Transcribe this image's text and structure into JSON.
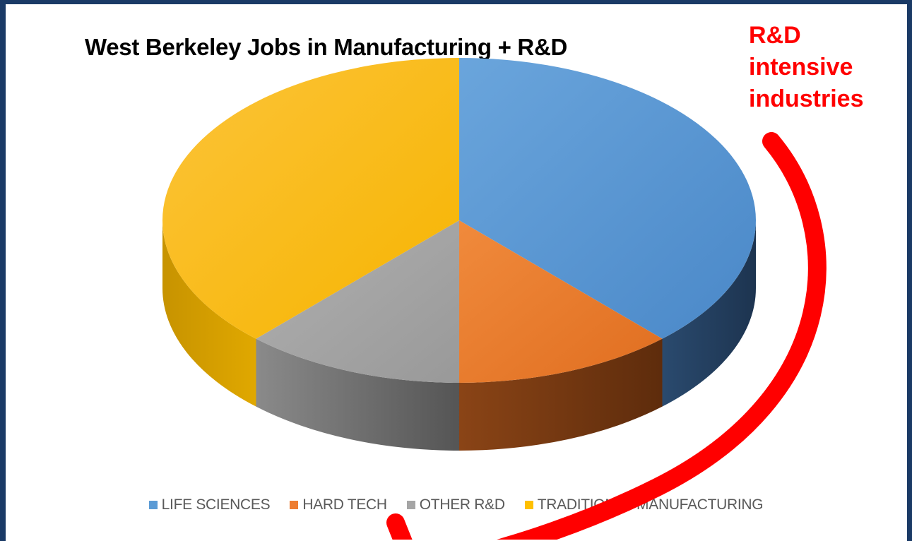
{
  "chart_data": {
    "type": "pie",
    "title": "West Berkeley Jobs in Manufacturing + R&D",
    "categories": [
      "LIFE SCIENCES",
      "HARD TECH",
      "OTHER R&D",
      "TRADITIONAL MANUFACTURING"
    ],
    "values": [
      38,
      12,
      12,
      38
    ],
    "colors": [
      "#5b9bd5",
      "#ed7d31",
      "#a5a5a5",
      "#ffc000"
    ],
    "legend_position": "bottom",
    "style": "3d"
  },
  "annotation": {
    "lines": [
      "R&D",
      "intensive",
      "industries"
    ],
    "color": "#ff0000"
  }
}
